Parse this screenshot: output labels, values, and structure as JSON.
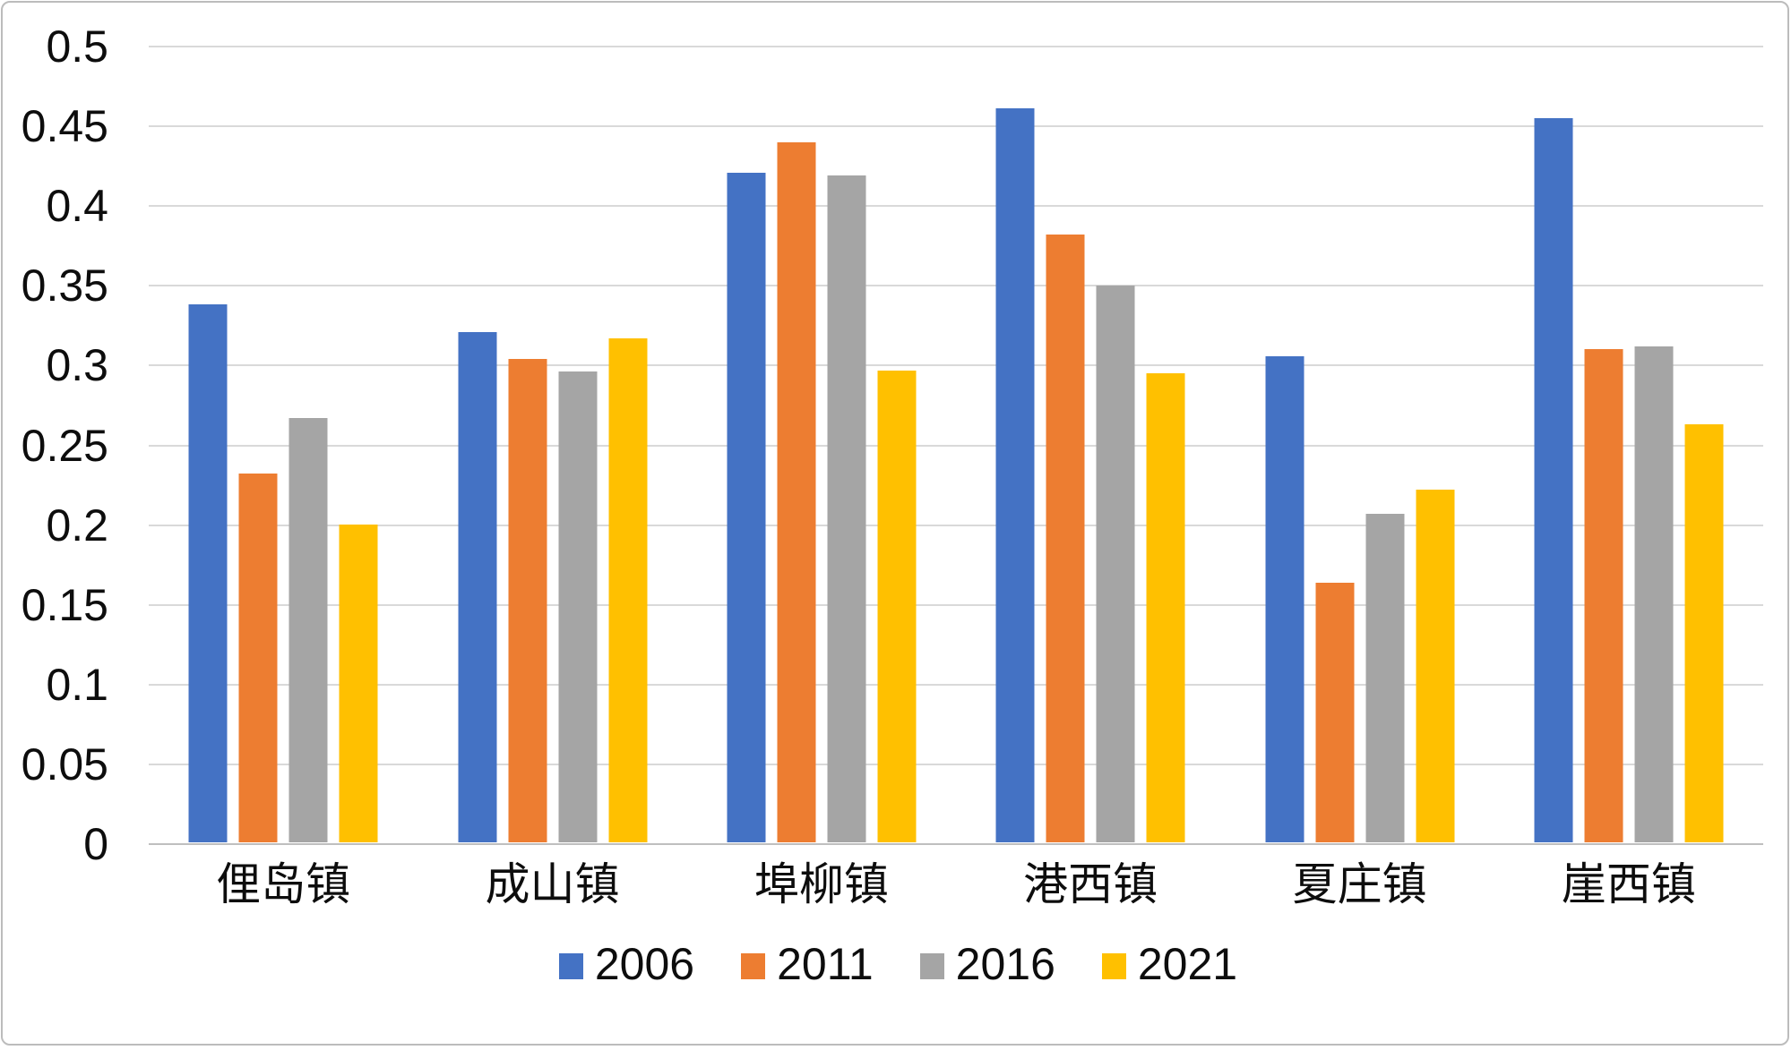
{
  "chart_data": {
    "type": "bar",
    "title": "",
    "xlabel": "",
    "ylabel": "",
    "categories": [
      "俚岛镇",
      "成山镇",
      "埠柳镇",
      "港西镇",
      "夏庄镇",
      "崖西镇"
    ],
    "series": [
      {
        "name": "2006",
        "color": "#4472C4",
        "values": [
          0.337,
          0.32,
          0.42,
          0.46,
          0.305,
          0.454
        ]
      },
      {
        "name": "2011",
        "color": "#ED7D31",
        "values": [
          0.231,
          0.303,
          0.439,
          0.381,
          0.163,
          0.309
        ]
      },
      {
        "name": "2016",
        "color": "#A5A5A5",
        "values": [
          0.266,
          0.295,
          0.418,
          0.349,
          0.206,
          0.311
        ]
      },
      {
        "name": "2021",
        "color": "#FFC000",
        "values": [
          0.199,
          0.316,
          0.296,
          0.294,
          0.221,
          0.262
        ]
      }
    ],
    "y_axis": {
      "min": 0,
      "max": 0.5,
      "step": 0.05,
      "tick_labels": [
        "0",
        "0.05",
        "0.1",
        "0.15",
        "0.2",
        "0.25",
        "0.3",
        "0.35",
        "0.4",
        "0.45",
        "0.5"
      ]
    },
    "grid": "horizontal",
    "legend_position": "bottom",
    "gridline_color": "#D9D9D9",
    "text_color": "#0D0D0D",
    "background_color": "#FFFFFF"
  }
}
